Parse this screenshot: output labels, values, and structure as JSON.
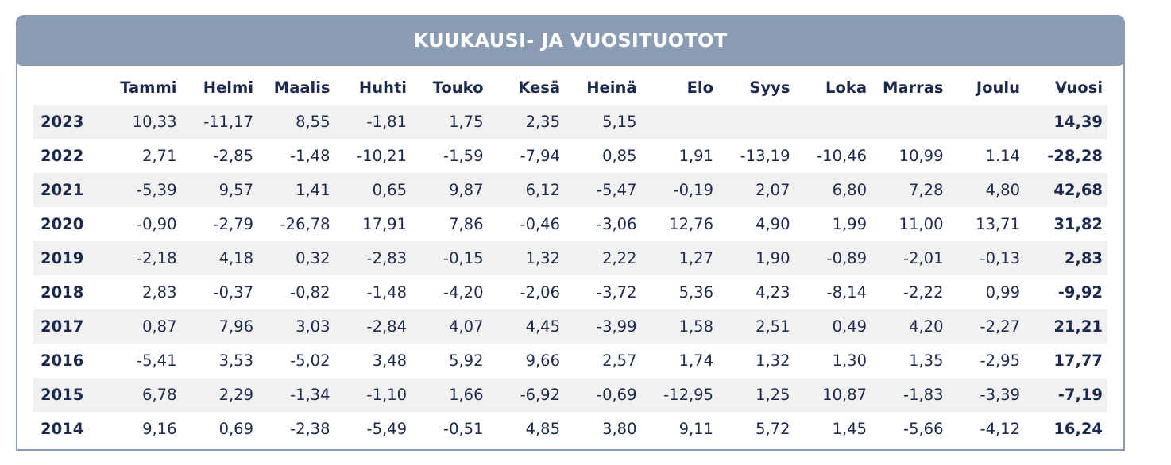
{
  "chart_data": {
    "type": "table",
    "title": "KUUKAUSI- JA VUOSITUOTOT",
    "columns": [
      "",
      "Tammi",
      "Helmi",
      "Maalis",
      "Huhti",
      "Touko",
      "Kesä",
      "Heinä",
      "Elo",
      "Syys",
      "Loka",
      "Marras",
      "Joulu",
      "Vuosi"
    ],
    "rows": [
      {
        "year": "2023",
        "values": [
          "10,33",
          "-11,17",
          "8,55",
          "-1,81",
          "1,75",
          "2,35",
          "5,15",
          "",
          "",
          "",
          "",
          ""
        ],
        "annual": "14,39"
      },
      {
        "year": "2022",
        "values": [
          "2,71",
          "-2,85",
          "-1,48",
          "-10,21",
          "-1,59",
          "-7,94",
          "0,85",
          "1,91",
          "-13,19",
          "-10,46",
          "10,99",
          "1.14"
        ],
        "annual": "-28,28"
      },
      {
        "year": "2021",
        "values": [
          "-5,39",
          "9,57",
          "1,41",
          "0,65",
          "9,87",
          "6,12",
          "-5,47",
          "-0,19",
          "2,07",
          "6,80",
          "7,28",
          "4,80"
        ],
        "annual": "42,68"
      },
      {
        "year": "2020",
        "values": [
          "-0,90",
          "-2,79",
          "-26,78",
          "17,91",
          "7,86",
          "-0,46",
          "-3,06",
          "12,76",
          "4,90",
          "1,99",
          "11,00",
          "13,71"
        ],
        "annual": "31,82"
      },
      {
        "year": "2019",
        "values": [
          "-2,18",
          "4,18",
          "0,32",
          "-2,83",
          "-0,15",
          "1,32",
          "2,22",
          "1,27",
          "1,90",
          "-0,89",
          "-2,01",
          "-0,13"
        ],
        "annual": "2,83"
      },
      {
        "year": "2018",
        "values": [
          "2,83",
          "-0,37",
          "-0,82",
          "-1,48",
          "-4,20",
          "-2,06",
          "-3,72",
          "5,36",
          "4,23",
          "-8,14",
          "-2,22",
          "0,99"
        ],
        "annual": "-9,92"
      },
      {
        "year": "2017",
        "values": [
          "0,87",
          "7,96",
          "3,03",
          "-2,84",
          "4,07",
          "4,45",
          "-3,99",
          "1,58",
          "2,51",
          "0,49",
          "4,20",
          "-2,27"
        ],
        "annual": "21,21"
      },
      {
        "year": "2016",
        "values": [
          "-5,41",
          "3,53",
          "-5,02",
          "3,48",
          "5,92",
          "9,66",
          "2,57",
          "1,74",
          "1,32",
          "1,30",
          "1,35",
          "-2,95"
        ],
        "annual": "17,77"
      },
      {
        "year": "2015",
        "values": [
          "6,78",
          "2,29",
          "-1,34",
          "-1,10",
          "1,66",
          "-6,92",
          "-0,69",
          "-12,95",
          "1,25",
          "10,87",
          "-1,83",
          "-3,39"
        ],
        "annual": "-7,19"
      },
      {
        "year": "2014",
        "values": [
          "9,16",
          "0,69",
          "-2,38",
          "-5,49",
          "-0,51",
          "4,85",
          "3,80",
          "9,11",
          "5,72",
          "1,45",
          "-5,66",
          "-4,12"
        ],
        "annual": "16,24"
      }
    ]
  },
  "colors": {
    "header_bar": "#8a9bb4",
    "text": "#1c2a4d",
    "row_shade": "#f1f1f1"
  }
}
